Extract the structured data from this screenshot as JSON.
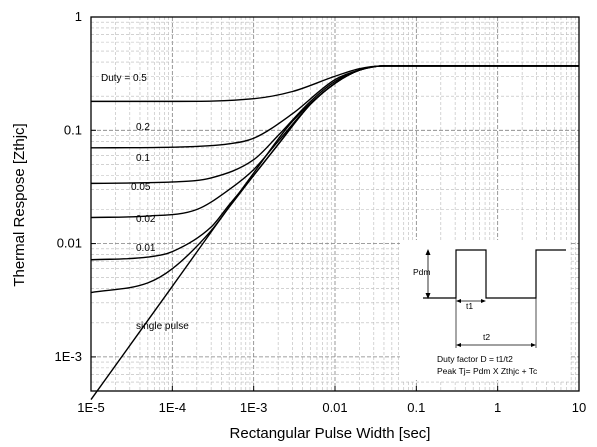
{
  "chart_data": {
    "type": "line",
    "title": "",
    "xlabel": "Rectangular Pulse Width [sec]",
    "ylabel": "Thermal Respose [Zthjc]",
    "x_scale": "log",
    "y_scale": "log",
    "xlim": [
      1e-05,
      10
    ],
    "ylim": [
      0.0005,
      1
    ],
    "grid": true,
    "x_ticks": [
      {
        "value": 1e-05,
        "label": "1E-5"
      },
      {
        "value": 0.0001,
        "label": "1E-4"
      },
      {
        "value": 0.001,
        "label": "1E-3"
      },
      {
        "value": 0.01,
        "label": "0.01"
      },
      {
        "value": 0.1,
        "label": "0.1"
      },
      {
        "value": 1,
        "label": "1"
      },
      {
        "value": 10,
        "label": "10"
      }
    ],
    "y_ticks": [
      {
        "value": 1,
        "label": "1"
      },
      {
        "value": 0.1,
        "label": "0.1"
      },
      {
        "value": 0.01,
        "label": "0.01"
      },
      {
        "value": 0.001,
        "label": "1E-3"
      }
    ],
    "series": [
      {
        "name": "Duty = 0.5",
        "x": [
          1e-05,
          0.0001,
          0.001,
          0.003,
          0.01,
          0.02,
          0.04,
          0.1,
          1,
          10
        ],
        "y": [
          0.18,
          0.18,
          0.19,
          0.22,
          0.3,
          0.35,
          0.37,
          0.37,
          0.37,
          0.37
        ]
      },
      {
        "name": "0.2",
        "x": [
          1e-05,
          0.0001,
          0.0005,
          0.001,
          0.003,
          0.01,
          0.02,
          0.04,
          0.1,
          10
        ],
        "y": [
          0.07,
          0.071,
          0.076,
          0.085,
          0.14,
          0.28,
          0.34,
          0.37,
          0.37,
          0.37
        ]
      },
      {
        "name": "0.1",
        "x": [
          1e-05,
          0.0001,
          0.0003,
          0.001,
          0.002,
          0.005,
          0.01,
          0.02,
          0.04,
          0.1,
          10
        ],
        "y": [
          0.034,
          0.035,
          0.038,
          0.055,
          0.09,
          0.18,
          0.27,
          0.34,
          0.37,
          0.37,
          0.37
        ]
      },
      {
        "name": "0.05",
        "x": [
          1e-05,
          5e-05,
          0.0002,
          0.0005,
          0.001,
          0.002,
          0.005,
          0.01,
          0.02,
          0.04,
          0.1,
          10
        ],
        "y": [
          0.017,
          0.0175,
          0.02,
          0.03,
          0.045,
          0.08,
          0.17,
          0.26,
          0.34,
          0.37,
          0.37,
          0.37
        ]
      },
      {
        "name": "0.02",
        "x": [
          1e-05,
          5e-05,
          0.0001,
          0.0003,
          0.0005,
          0.001,
          0.002,
          0.005,
          0.01,
          0.02,
          0.04,
          0.1,
          10
        ],
        "y": [
          0.0072,
          0.0076,
          0.0085,
          0.014,
          0.022,
          0.04,
          0.075,
          0.17,
          0.26,
          0.34,
          0.37,
          0.37,
          0.37
        ]
      },
      {
        "name": "0.01",
        "x": [
          1e-05,
          5e-05,
          0.0001,
          0.0003,
          0.0005,
          0.001,
          0.002,
          0.005,
          0.01,
          0.02,
          0.04,
          0.1,
          10
        ],
        "y": [
          0.0037,
          0.0045,
          0.006,
          0.013,
          0.021,
          0.04,
          0.075,
          0.17,
          0.26,
          0.34,
          0.37,
          0.37,
          0.37
        ]
      },
      {
        "name": "single pulse",
        "x": [
          1e-05,
          0.0001,
          0.001,
          0.003,
          0.01,
          0.02,
          0.04,
          0.1,
          10
        ],
        "y": [
          0.00042,
          0.0042,
          0.042,
          0.12,
          0.26,
          0.34,
          0.37,
          0.37,
          0.37
        ]
      }
    ],
    "inset": {
      "labels": {
        "pdm": "Pdm",
        "t1": "t1",
        "t2": "t2",
        "duty_factor": "Duty factor D = t1/t2",
        "peak_tj": "Peak Tj= Pdm X Zthjc + Tc"
      }
    }
  }
}
